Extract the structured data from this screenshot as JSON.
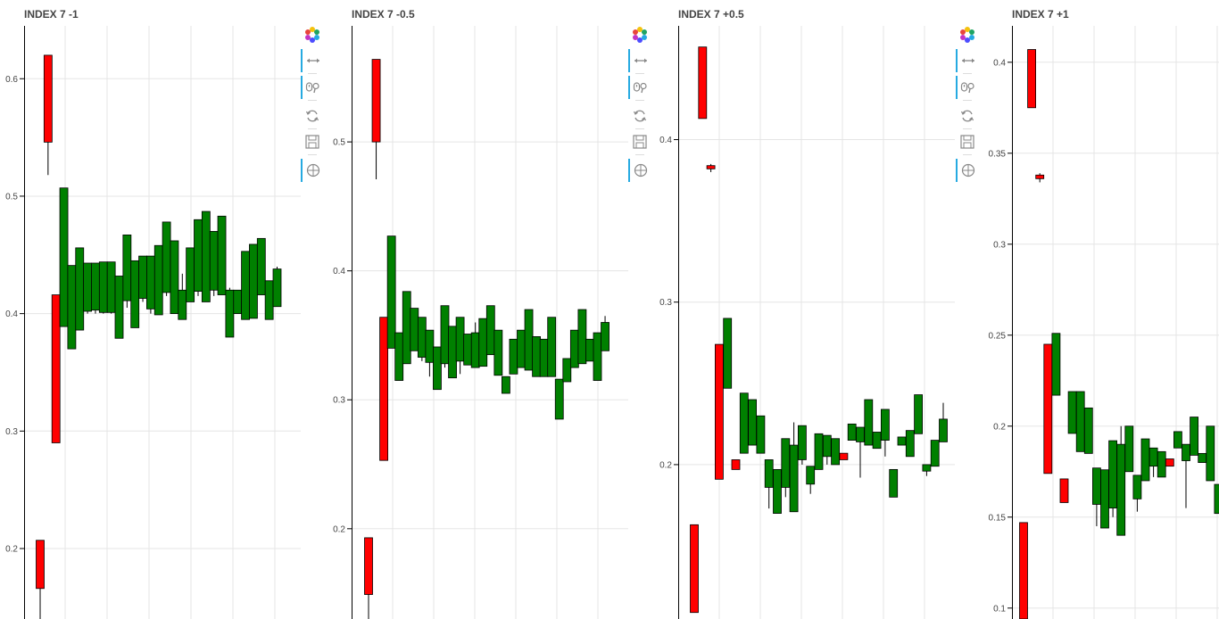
{
  "tools": [
    {
      "name": "bokeh-logo-icon",
      "active": false
    },
    {
      "name": "pan-icon",
      "active": true
    },
    {
      "name": "wheel-zoom-icon",
      "active": true
    },
    {
      "name": "reset-icon",
      "active": false
    },
    {
      "name": "save-icon",
      "active": false
    },
    {
      "name": "hover-icon",
      "active": true
    }
  ],
  "chart_data": [
    {
      "type": "candlestick",
      "title": "INDEX 7 -1",
      "ylim": [
        0.14,
        0.645
      ],
      "yticks": [
        "0.2",
        "0.3",
        "0.4",
        "0.5",
        "0.6"
      ],
      "grid": true,
      "up_color": "#008000",
      "down_color": "#ff0000",
      "candles": [
        {
          "x": 1,
          "open": 0.207,
          "close": 0.166,
          "high": 0.207,
          "low": 0.14
        },
        {
          "x": 2,
          "open": 0.62,
          "close": 0.546,
          "high": 0.62,
          "low": 0.518
        },
        {
          "x": 3,
          "open": 0.416,
          "close": 0.29,
          "high": 0.416,
          "low": 0.29
        },
        {
          "x": 4,
          "open": 0.389,
          "close": 0.507,
          "high": 0.507,
          "low": 0.389
        },
        {
          "x": 5,
          "open": 0.37,
          "close": 0.441,
          "high": 0.441,
          "low": 0.37
        },
        {
          "x": 6,
          "open": 0.386,
          "close": 0.456,
          "high": 0.456,
          "low": 0.386
        },
        {
          "x": 7,
          "open": 0.402,
          "close": 0.443,
          "high": 0.443,
          "low": 0.4
        },
        {
          "x": 8,
          "open": 0.403,
          "close": 0.443,
          "high": 0.443,
          "low": 0.4
        },
        {
          "x": 9,
          "open": 0.401,
          "close": 0.444,
          "high": 0.444,
          "low": 0.4
        },
        {
          "x": 10,
          "open": 0.401,
          "close": 0.444,
          "high": 0.444,
          "low": 0.4
        },
        {
          "x": 11,
          "open": 0.379,
          "close": 0.432,
          "high": 0.432,
          "low": 0.379
        },
        {
          "x": 12,
          "open": 0.411,
          "close": 0.467,
          "high": 0.467,
          "low": 0.405
        },
        {
          "x": 13,
          "open": 0.388,
          "close": 0.445,
          "high": 0.445,
          "low": 0.388
        },
        {
          "x": 14,
          "open": 0.413,
          "close": 0.449,
          "high": 0.449,
          "low": 0.41
        },
        {
          "x": 15,
          "open": 0.404,
          "close": 0.449,
          "high": 0.449,
          "low": 0.4
        },
        {
          "x": 16,
          "open": 0.399,
          "close": 0.458,
          "high": 0.458,
          "low": 0.399
        },
        {
          "x": 17,
          "open": 0.418,
          "close": 0.478,
          "high": 0.478,
          "low": 0.415
        },
        {
          "x": 18,
          "open": 0.4,
          "close": 0.462,
          "high": 0.462,
          "low": 0.4
        },
        {
          "x": 19,
          "open": 0.395,
          "close": 0.42,
          "high": 0.434,
          "low": 0.395
        },
        {
          "x": 20,
          "open": 0.41,
          "close": 0.456,
          "high": 0.456,
          "low": 0.41
        },
        {
          "x": 21,
          "open": 0.419,
          "close": 0.48,
          "high": 0.48,
          "low": 0.415
        },
        {
          "x": 22,
          "open": 0.41,
          "close": 0.487,
          "high": 0.487,
          "low": 0.41
        },
        {
          "x": 23,
          "open": 0.42,
          "close": 0.47,
          "high": 0.47,
          "low": 0.415
        },
        {
          "x": 24,
          "open": 0.416,
          "close": 0.483,
          "high": 0.483,
          "low": 0.416
        },
        {
          "x": 25,
          "open": 0.38,
          "close": 0.42,
          "high": 0.422,
          "low": 0.38
        },
        {
          "x": 26,
          "open": 0.4,
          "close": 0.42,
          "high": 0.42,
          "low": 0.4
        },
        {
          "x": 27,
          "open": 0.395,
          "close": 0.453,
          "high": 0.453,
          "low": 0.395
        },
        {
          "x": 28,
          "open": 0.396,
          "close": 0.459,
          "high": 0.459,
          "low": 0.396
        },
        {
          "x": 29,
          "open": 0.416,
          "close": 0.464,
          "high": 0.464,
          "low": 0.416
        },
        {
          "x": 30,
          "open": 0.395,
          "close": 0.428,
          "high": 0.428,
          "low": 0.395
        },
        {
          "x": 31,
          "open": 0.406,
          "close": 0.438,
          "high": 0.44,
          "low": 0.406
        }
      ]
    },
    {
      "type": "candlestick",
      "title": "INDEX 7 -0.5",
      "ylim": [
        0.13,
        0.59
      ],
      "yticks": [
        "0.2",
        "0.3",
        "0.4",
        "0.5"
      ],
      "grid": true,
      "up_color": "#008000",
      "down_color": "#ff0000",
      "candles": [
        {
          "x": 1,
          "open": 0.193,
          "close": 0.149,
          "high": 0.193,
          "low": 0.13
        },
        {
          "x": 2,
          "open": 0.564,
          "close": 0.5,
          "high": 0.564,
          "low": 0.471
        },
        {
          "x": 3,
          "open": 0.364,
          "close": 0.253,
          "high": 0.364,
          "low": 0.253
        },
        {
          "x": 4,
          "open": 0.34,
          "close": 0.427,
          "high": 0.427,
          "low": 0.34
        },
        {
          "x": 5,
          "open": 0.315,
          "close": 0.352,
          "high": 0.352,
          "low": 0.315
        },
        {
          "x": 6,
          "open": 0.328,
          "close": 0.384,
          "high": 0.384,
          "low": 0.328
        },
        {
          "x": 7,
          "open": 0.338,
          "close": 0.371,
          "high": 0.371,
          "low": 0.338
        },
        {
          "x": 8,
          "open": 0.333,
          "close": 0.364,
          "high": 0.364,
          "low": 0.33
        },
        {
          "x": 9,
          "open": 0.329,
          "close": 0.354,
          "high": 0.354,
          "low": 0.318
        },
        {
          "x": 10,
          "open": 0.308,
          "close": 0.341,
          "high": 0.341,
          "low": 0.308
        },
        {
          "x": 11,
          "open": 0.328,
          "close": 0.373,
          "high": 0.373,
          "low": 0.325
        },
        {
          "x": 12,
          "open": 0.317,
          "close": 0.357,
          "high": 0.357,
          "low": 0.317
        },
        {
          "x": 13,
          "open": 0.33,
          "close": 0.364,
          "high": 0.364,
          "low": 0.32
        },
        {
          "x": 14,
          "open": 0.327,
          "close": 0.351,
          "high": 0.351,
          "low": 0.327
        },
        {
          "x": 15,
          "open": 0.325,
          "close": 0.352,
          "high": 0.36,
          "low": 0.325
        },
        {
          "x": 16,
          "open": 0.326,
          "close": 0.363,
          "high": 0.363,
          "low": 0.326
        },
        {
          "x": 17,
          "open": 0.335,
          "close": 0.373,
          "high": 0.373,
          "low": 0.335
        },
        {
          "x": 18,
          "open": 0.319,
          "close": 0.354,
          "high": 0.354,
          "low": 0.319
        },
        {
          "x": 19,
          "open": 0.305,
          "close": 0.318,
          "high": 0.318,
          "low": 0.305
        },
        {
          "x": 20,
          "open": 0.32,
          "close": 0.347,
          "high": 0.347,
          "low": 0.32
        },
        {
          "x": 21,
          "open": 0.325,
          "close": 0.354,
          "high": 0.354,
          "low": 0.325
        },
        {
          "x": 22,
          "open": 0.323,
          "close": 0.37,
          "high": 0.37,
          "low": 0.323
        },
        {
          "x": 23,
          "open": 0.318,
          "close": 0.349,
          "high": 0.349,
          "low": 0.318
        },
        {
          "x": 24,
          "open": 0.318,
          "close": 0.347,
          "high": 0.347,
          "low": 0.318
        },
        {
          "x": 25,
          "open": 0.318,
          "close": 0.364,
          "high": 0.364,
          "low": 0.318
        },
        {
          "x": 26,
          "open": 0.285,
          "close": 0.316,
          "high": 0.316,
          "low": 0.285
        },
        {
          "x": 27,
          "open": 0.314,
          "close": 0.332,
          "high": 0.332,
          "low": 0.314
        },
        {
          "x": 28,
          "open": 0.325,
          "close": 0.354,
          "high": 0.354,
          "low": 0.325
        },
        {
          "x": 29,
          "open": 0.328,
          "close": 0.37,
          "high": 0.37,
          "low": 0.328
        },
        {
          "x": 30,
          "open": 0.33,
          "close": 0.347,
          "high": 0.347,
          "low": 0.33
        },
        {
          "x": 31,
          "open": 0.315,
          "close": 0.352,
          "high": 0.352,
          "low": 0.315
        },
        {
          "x": 32,
          "open": 0.338,
          "close": 0.36,
          "high": 0.365,
          "low": 0.338
        }
      ]
    },
    {
      "type": "candlestick",
      "title": "INDEX 7 +0.5",
      "ylim": [
        0.105,
        0.47
      ],
      "yticks": [
        "0.2",
        "0.3",
        "0.4"
      ],
      "grid": true,
      "up_color": "#008000",
      "down_color": "#ff0000",
      "candles": [
        {
          "x": 1,
          "open": 0.163,
          "close": 0.109,
          "high": 0.163,
          "low": 0.109
        },
        {
          "x": 2,
          "open": 0.457,
          "close": 0.413,
          "high": 0.457,
          "low": 0.413
        },
        {
          "x": 3,
          "open": 0.384,
          "close": 0.382,
          "high": 0.385,
          "low": 0.38
        },
        {
          "x": 4,
          "open": 0.274,
          "close": 0.191,
          "high": 0.274,
          "low": 0.191
        },
        {
          "x": 5,
          "open": 0.247,
          "close": 0.29,
          "high": 0.29,
          "low": 0.247
        },
        {
          "x": 6,
          "open": 0.203,
          "close": 0.197,
          "high": 0.203,
          "low": 0.197
        },
        {
          "x": 7,
          "open": 0.207,
          "close": 0.244,
          "high": 0.244,
          "low": 0.207
        },
        {
          "x": 8,
          "open": 0.212,
          "close": 0.24,
          "high": 0.24,
          "low": 0.212
        },
        {
          "x": 9,
          "open": 0.207,
          "close": 0.23,
          "high": 0.23,
          "low": 0.207
        },
        {
          "x": 10,
          "open": 0.186,
          "close": 0.203,
          "high": 0.203,
          "low": 0.173
        },
        {
          "x": 11,
          "open": 0.17,
          "close": 0.197,
          "high": 0.197,
          "low": 0.17
        },
        {
          "x": 12,
          "open": 0.186,
          "close": 0.216,
          "high": 0.216,
          "low": 0.18
        },
        {
          "x": 13,
          "open": 0.171,
          "close": 0.212,
          "high": 0.226,
          "low": 0.171
        },
        {
          "x": 14,
          "open": 0.203,
          "close": 0.224,
          "high": 0.224,
          "low": 0.2
        },
        {
          "x": 15,
          "open": 0.188,
          "close": 0.199,
          "high": 0.199,
          "low": 0.182
        },
        {
          "x": 16,
          "open": 0.197,
          "close": 0.219,
          "high": 0.219,
          "low": 0.197
        },
        {
          "x": 17,
          "open": 0.205,
          "close": 0.218,
          "high": 0.218,
          "low": 0.2
        },
        {
          "x": 18,
          "open": 0.2,
          "close": 0.216,
          "high": 0.216,
          "low": 0.2
        },
        {
          "x": 19,
          "open": 0.207,
          "close": 0.203,
          "high": 0.207,
          "low": 0.203
        },
        {
          "x": 20,
          "open": 0.215,
          "close": 0.225,
          "high": 0.225,
          "low": 0.215
        },
        {
          "x": 21,
          "open": 0.214,
          "close": 0.223,
          "high": 0.223,
          "low": 0.192
        },
        {
          "x": 22,
          "open": 0.212,
          "close": 0.24,
          "high": 0.24,
          "low": 0.212
        },
        {
          "x": 23,
          "open": 0.21,
          "close": 0.22,
          "high": 0.22,
          "low": 0.21
        },
        {
          "x": 24,
          "open": 0.215,
          "close": 0.234,
          "high": 0.234,
          "low": 0.205
        },
        {
          "x": 25,
          "open": 0.18,
          "close": 0.197,
          "high": 0.197,
          "low": 0.18
        },
        {
          "x": 26,
          "open": 0.212,
          "close": 0.217,
          "high": 0.217,
          "low": 0.212
        },
        {
          "x": 27,
          "open": 0.205,
          "close": 0.221,
          "high": 0.221,
          "low": 0.205
        },
        {
          "x": 28,
          "open": 0.219,
          "close": 0.243,
          "high": 0.243,
          "low": 0.219
        },
        {
          "x": 29,
          "open": 0.196,
          "close": 0.2,
          "high": 0.2,
          "low": 0.193
        },
        {
          "x": 30,
          "open": 0.199,
          "close": 0.215,
          "high": 0.215,
          "low": 0.199
        },
        {
          "x": 31,
          "open": 0.214,
          "close": 0.228,
          "high": 0.238,
          "low": 0.214
        }
      ]
    },
    {
      "type": "candlestick",
      "title": "INDEX 7 +1",
      "ylim": [
        0.094,
        0.42
      ],
      "yticks": [
        "0.1",
        "0.15",
        "0.2",
        "0.25",
        "0.3",
        "0.35",
        "0.4"
      ],
      "grid": true,
      "up_color": "#008000",
      "down_color": "#ff0000",
      "candles": [
        {
          "x": 1,
          "open": 0.147,
          "close": 0.094,
          "high": 0.147,
          "low": 0.094
        },
        {
          "x": 2,
          "open": 0.407,
          "close": 0.375,
          "high": 0.407,
          "low": 0.375
        },
        {
          "x": 3,
          "open": 0.338,
          "close": 0.336,
          "high": 0.339,
          "low": 0.334
        },
        {
          "x": 4,
          "open": 0.245,
          "close": 0.174,
          "high": 0.245,
          "low": 0.174
        },
        {
          "x": 5,
          "open": 0.217,
          "close": 0.251,
          "high": 0.251,
          "low": 0.217
        },
        {
          "x": 6,
          "open": 0.171,
          "close": 0.158,
          "high": 0.171,
          "low": 0.158
        },
        {
          "x": 7,
          "open": 0.196,
          "close": 0.219,
          "high": 0.219,
          "low": 0.196
        },
        {
          "x": 8,
          "open": 0.186,
          "close": 0.219,
          "high": 0.219,
          "low": 0.186
        },
        {
          "x": 9,
          "open": 0.185,
          "close": 0.21,
          "high": 0.21,
          "low": 0.185
        },
        {
          "x": 10,
          "open": 0.157,
          "close": 0.177,
          "high": 0.177,
          "low": 0.145
        },
        {
          "x": 11,
          "open": 0.144,
          "close": 0.176,
          "high": 0.176,
          "low": 0.144
        },
        {
          "x": 12,
          "open": 0.155,
          "close": 0.192,
          "high": 0.192,
          "low": 0.15
        },
        {
          "x": 13,
          "open": 0.14,
          "close": 0.19,
          "high": 0.2,
          "low": 0.14
        },
        {
          "x": 14,
          "open": 0.175,
          "close": 0.2,
          "high": 0.2,
          "low": 0.175
        },
        {
          "x": 15,
          "open": 0.16,
          "close": 0.173,
          "high": 0.173,
          "low": 0.153
        },
        {
          "x": 16,
          "open": 0.17,
          "close": 0.193,
          "high": 0.193,
          "low": 0.17
        },
        {
          "x": 17,
          "open": 0.178,
          "close": 0.188,
          "high": 0.188,
          "low": 0.172
        },
        {
          "x": 18,
          "open": 0.172,
          "close": 0.186,
          "high": 0.186,
          "low": 0.172
        },
        {
          "x": 19,
          "open": 0.182,
          "close": 0.178,
          "high": 0.182,
          "low": 0.178
        },
        {
          "x": 20,
          "open": 0.188,
          "close": 0.197,
          "high": 0.197,
          "low": 0.188
        },
        {
          "x": 21,
          "open": 0.181,
          "close": 0.19,
          "high": 0.19,
          "low": 0.155
        },
        {
          "x": 22,
          "open": 0.184,
          "close": 0.205,
          "high": 0.205,
          "low": 0.184
        },
        {
          "x": 23,
          "open": 0.18,
          "close": 0.185,
          "high": 0.185,
          "low": 0.18
        },
        {
          "x": 24,
          "open": 0.17,
          "close": 0.2,
          "high": 0.2,
          "low": 0.17
        },
        {
          "x": 25,
          "open": 0.152,
          "close": 0.168,
          "high": 0.168,
          "low": 0.152
        }
      ]
    }
  ]
}
